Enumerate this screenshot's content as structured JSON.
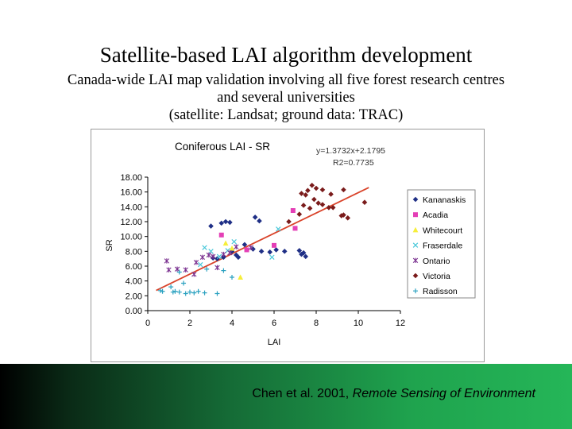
{
  "slide": {
    "title": "Satellite-based LAI algorithm development",
    "subtitle_lines": [
      "Canada-wide LAI map validation involving all five forest research centres",
      "and several universities",
      "(satellite: Landsat; ground data: TRAC)"
    ],
    "citation_prefix": "Chen et al. 2001,",
    "citation_journal": "Remote Sensing of Environment"
  },
  "colors": {
    "band_left": "#000000",
    "band_right": "#25b658",
    "trendline": "#d9432a"
  },
  "chart_data": {
    "type": "scatter",
    "title": "Coniferous LAI - SR",
    "xlabel": "LAI",
    "ylabel": "SR",
    "xlim": [
      0,
      12
    ],
    "ylim": [
      0,
      18
    ],
    "x_ticks": [
      "0",
      "2",
      "4",
      "6",
      "8",
      "10",
      "12"
    ],
    "y_ticks": [
      "0.00",
      "2.00",
      "4.00",
      "6.00",
      "8.00",
      "10.00",
      "12.00",
      "14.00",
      "16.00",
      "18.00"
    ],
    "equation": "y=1.3732x+2.1795",
    "r2": "R2=0.7735",
    "grid": false,
    "legend_position": "right",
    "trendline": {
      "slope": 1.3732,
      "intercept": 2.1795,
      "x_range": [
        0.4,
        10.5
      ]
    },
    "series": [
      {
        "name": "Kananaskis",
        "marker": "diamond",
        "color": "#1f2f86",
        "points": [
          [
            3.0,
            11.4
          ],
          [
            3.5,
            11.8
          ],
          [
            3.7,
            12.0
          ],
          [
            3.9,
            11.9
          ],
          [
            5.1,
            12.6
          ],
          [
            5.3,
            12.1
          ],
          [
            3.3,
            7.0
          ],
          [
            3.6,
            7.2
          ],
          [
            4.0,
            8.0
          ],
          [
            4.2,
            7.5
          ],
          [
            4.6,
            8.9
          ],
          [
            5.0,
            8.3
          ],
          [
            5.4,
            8.0
          ],
          [
            6.1,
            8.2
          ],
          [
            6.5,
            8.0
          ],
          [
            7.2,
            8.1
          ],
          [
            7.4,
            7.8
          ],
          [
            7.5,
            7.3
          ],
          [
            3.1,
            7.1
          ],
          [
            4.3,
            7.2
          ],
          [
            5.8,
            7.9
          ],
          [
            7.3,
            7.6
          ]
        ]
      },
      {
        "name": "Acadia",
        "marker": "square",
        "color": "#e43fb6",
        "points": [
          [
            3.5,
            10.2
          ],
          [
            4.7,
            8.2
          ],
          [
            6.0,
            8.8
          ],
          [
            6.9,
            13.5
          ],
          [
            7.0,
            11.1
          ]
        ]
      },
      {
        "name": "Whitecourt",
        "marker": "triangle",
        "color": "#f6ee3a",
        "points": [
          [
            4.4,
            4.5
          ],
          [
            4.0,
            8.4
          ],
          [
            3.7,
            9.1
          ]
        ]
      },
      {
        "name": "Fraserdale",
        "marker": "x",
        "color": "#46c7d9",
        "points": [
          [
            2.7,
            8.5
          ],
          [
            3.0,
            8.0
          ],
          [
            3.4,
            7.3
          ],
          [
            5.9,
            7.2
          ],
          [
            6.2,
            11.0
          ],
          [
            4.1,
            9.3
          ],
          [
            2.5,
            6.2
          ],
          [
            3.8,
            8.1
          ]
        ]
      },
      {
        "name": "Ontario",
        "marker": "star",
        "color": "#7b3290",
        "points": [
          [
            0.9,
            6.7
          ],
          [
            1.0,
            5.5
          ],
          [
            1.4,
            5.6
          ],
          [
            1.8,
            5.5
          ],
          [
            2.3,
            6.5
          ],
          [
            2.6,
            7.2
          ],
          [
            2.9,
            7.5
          ],
          [
            3.1,
            7.3
          ],
          [
            3.6,
            7.6
          ],
          [
            3.9,
            7.8
          ],
          [
            4.2,
            8.6
          ],
          [
            4.9,
            8.5
          ],
          [
            2.2,
            4.9
          ],
          [
            3.3,
            5.8
          ]
        ]
      },
      {
        "name": "Victoria",
        "marker": "diamond",
        "color": "#7a1b1b",
        "points": [
          [
            7.3,
            15.8
          ],
          [
            7.5,
            15.6
          ],
          [
            7.6,
            16.2
          ],
          [
            7.8,
            16.9
          ],
          [
            8.0,
            16.5
          ],
          [
            8.3,
            16.3
          ],
          [
            8.7,
            15.7
          ],
          [
            9.3,
            16.3
          ],
          [
            7.7,
            13.8
          ],
          [
            8.1,
            14.5
          ],
          [
            8.3,
            14.3
          ],
          [
            8.6,
            13.9
          ],
          [
            8.8,
            13.9
          ],
          [
            9.2,
            12.8
          ],
          [
            9.5,
            12.5
          ],
          [
            9.3,
            12.9
          ],
          [
            10.3,
            14.6
          ],
          [
            7.4,
            14.2
          ],
          [
            7.9,
            15.0
          ],
          [
            6.7,
            12.0
          ],
          [
            7.2,
            13.0
          ]
        ]
      },
      {
        "name": "Radisson",
        "marker": "plus",
        "color": "#2aa1c0",
        "points": [
          [
            0.6,
            2.7
          ],
          [
            0.7,
            2.6
          ],
          [
            1.2,
            2.5
          ],
          [
            1.3,
            2.6
          ],
          [
            1.5,
            2.5
          ],
          [
            1.7,
            3.7
          ],
          [
            1.8,
            2.3
          ],
          [
            2.0,
            2.5
          ],
          [
            2.2,
            2.4
          ],
          [
            2.4,
            2.6
          ],
          [
            2.7,
            2.4
          ],
          [
            3.3,
            2.3
          ],
          [
            3.6,
            5.4
          ],
          [
            4.0,
            4.5
          ],
          [
            1.1,
            3.2
          ],
          [
            1.5,
            5.2
          ],
          [
            2.8,
            5.6
          ]
        ]
      }
    ]
  }
}
